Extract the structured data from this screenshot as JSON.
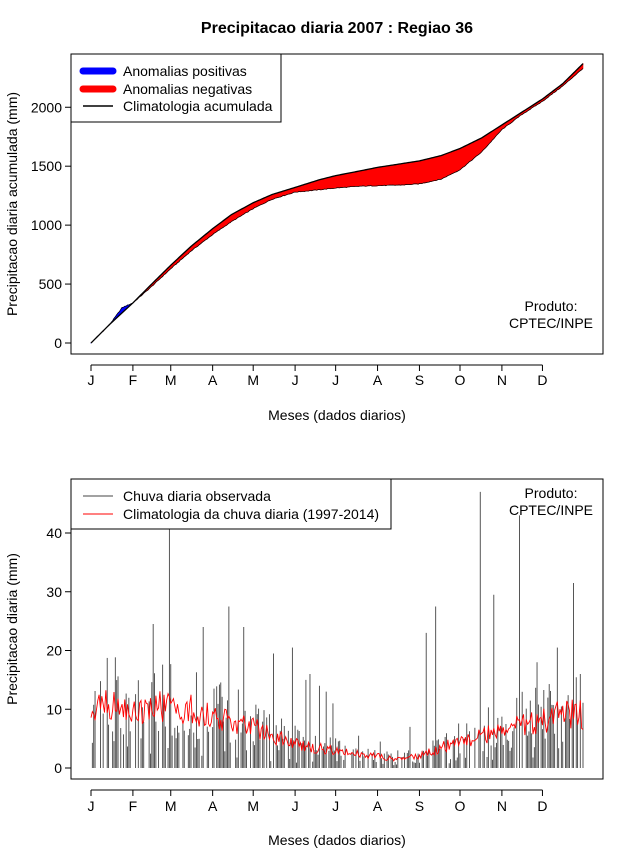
{
  "chart_data": [
    {
      "type": "area",
      "title": "Precipitacao diaria 2007 : Regiao 36",
      "xlabel": "Meses (dados diarios)",
      "ylabel": "Precipitacao diaria acumulada (mm)",
      "xlim": [
        1,
        365
      ],
      "ylim": [
        0,
        2350
      ],
      "y_ticks": [
        0,
        500,
        1000,
        1500,
        2000
      ],
      "month_labels": [
        "J",
        "F",
        "M",
        "A",
        "M",
        "J",
        "J",
        "A",
        "S",
        "O",
        "N",
        "D"
      ],
      "month_days": [
        1,
        32,
        60,
        91,
        121,
        152,
        182,
        213,
        244,
        274,
        305,
        335
      ],
      "legend": {
        "position": "top-left",
        "entries": [
          {
            "label": "Anomalias positivas",
            "color": "#0000ff"
          },
          {
            "label": "Anomalias negativas",
            "color": "#ff0000"
          },
          {
            "label": "Climatologia acumulada",
            "color": "#000000"
          }
        ]
      },
      "annotation": [
        "Produto:",
        "CPTEC/INPE"
      ],
      "climatology_cumulative": {
        "day": [
          1,
          15,
          32,
          45,
          60,
          75,
          91,
          105,
          121,
          135,
          152,
          170,
          182,
          200,
          213,
          230,
          244,
          260,
          274,
          290,
          305,
          320,
          335,
          350,
          365
        ],
        "value": [
          0,
          160,
          340,
          490,
          660,
          820,
          970,
          1090,
          1190,
          1260,
          1320,
          1385,
          1420,
          1460,
          1490,
          1520,
          1545,
          1590,
          1650,
          1740,
          1850,
          1960,
          2070,
          2200,
          2370
        ]
      },
      "observed_cumulative": {
        "day": [
          1,
          15,
          24,
          32,
          45,
          60,
          75,
          91,
          105,
          121,
          135,
          152,
          170,
          182,
          200,
          213,
          230,
          244,
          260,
          274,
          290,
          305,
          320,
          335,
          350,
          365
        ],
        "value": [
          0,
          160,
          300,
          340,
          470,
          630,
          780,
          920,
          1030,
          1140,
          1220,
          1280,
          1300,
          1315,
          1330,
          1335,
          1340,
          1350,
          1390,
          1470,
          1620,
          1810,
          1940,
          2050,
          2180,
          2330
        ]
      }
    },
    {
      "type": "bar",
      "title": "",
      "xlabel": "Meses (dados diarios)",
      "ylabel": "Precipitacao diaria (mm)",
      "xlim": [
        1,
        365
      ],
      "ylim": [
        0,
        47
      ],
      "y_ticks": [
        0,
        10,
        20,
        30,
        40
      ],
      "month_labels": [
        "J",
        "F",
        "M",
        "A",
        "M",
        "J",
        "J",
        "A",
        "S",
        "O",
        "N",
        "D"
      ],
      "month_days": [
        1,
        32,
        60,
        91,
        121,
        152,
        182,
        213,
        244,
        274,
        305,
        335
      ],
      "legend": {
        "position": "top-left",
        "entries": [
          {
            "label": "Chuva diaria observada",
            "color": "#444444"
          },
          {
            "label": "Climatologia da chuva diaria (1997-2014)",
            "color": "#ff0000"
          }
        ]
      },
      "annotation": [
        "Produto:",
        "CPTEC/INPE"
      ],
      "climatology_daily": {
        "day": [
          1,
          10,
          20,
          32,
          45,
          60,
          75,
          91,
          105,
          121,
          135,
          152,
          165,
          182,
          195,
          213,
          225,
          244,
          260,
          274,
          290,
          305,
          320,
          335,
          350,
          365
        ],
        "value": [
          8,
          11,
          10.5,
          10,
          10.5,
          10,
          10,
          9,
          8,
          7,
          5.5,
          4,
          3.5,
          3,
          2.5,
          2,
          1.5,
          2,
          3.5,
          4.5,
          5.5,
          6.5,
          7.5,
          8,
          9.5,
          9
        ]
      },
      "observed_daily_spikes": {
        "day": [
          59,
          47,
          84,
          103,
          114,
          136,
          150,
          160,
          163,
          170,
          175,
          180,
          199,
          215,
          228,
          237,
          249,
          256,
          289,
          299,
          318,
          331,
          346,
          358,
          363
        ],
        "value": [
          44,
          24.5,
          24,
          27.5,
          24,
          19.5,
          20.5,
          15,
          16,
          14,
          13,
          11,
          5.5,
          4.5,
          3,
          7,
          23,
          27.5,
          47,
          29.5,
          43,
          18,
          20.5,
          31.5,
          16
        ]
      }
    }
  ]
}
